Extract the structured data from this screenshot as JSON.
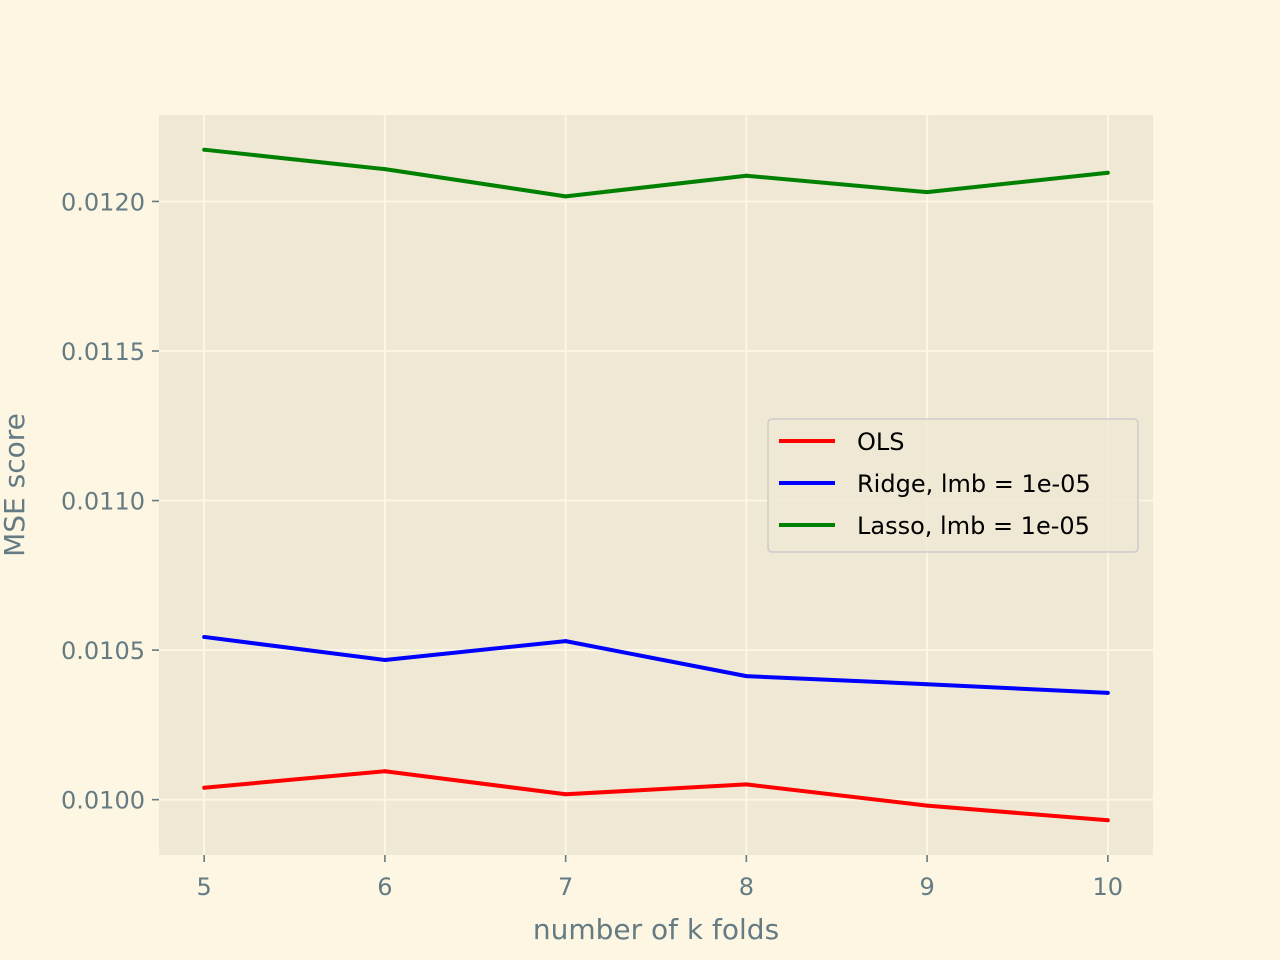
{
  "chart_data": {
    "type": "line",
    "title": "",
    "xlabel": "number of k folds",
    "ylabel": "MSE score",
    "x": [
      5,
      6,
      7,
      8,
      9,
      10
    ],
    "xlim": [
      4.75,
      10.25
    ],
    "ylim": [
      0.009815,
      0.012289
    ],
    "xticks": [
      5,
      6,
      7,
      8,
      9,
      10
    ],
    "xtick_labels": [
      "5",
      "6",
      "7",
      "8",
      "9",
      "10"
    ],
    "yticks": [
      0.01,
      0.0105,
      0.011,
      0.0115,
      0.012
    ],
    "ytick_labels": [
      "0.0100",
      "0.0105",
      "0.0110",
      "0.0115",
      "0.0120"
    ],
    "grid": true,
    "legend_position": "center-right",
    "series": [
      {
        "name": "OLS",
        "color": "#ff0000",
        "values": [
          0.01004,
          0.010095,
          0.010018,
          0.010051,
          0.00998,
          0.009931
        ]
      },
      {
        "name": "Ridge, lmb = 1e-05",
        "color": "#0000ff",
        "values": [
          0.010544,
          0.010467,
          0.01053,
          0.010413,
          0.010386,
          0.010357
        ]
      },
      {
        "name": "Lasso, lmb = 1e-05",
        "color": "#008000",
        "values": [
          0.012173,
          0.012108,
          0.012017,
          0.012086,
          0.012031,
          0.012096
        ]
      }
    ]
  }
}
